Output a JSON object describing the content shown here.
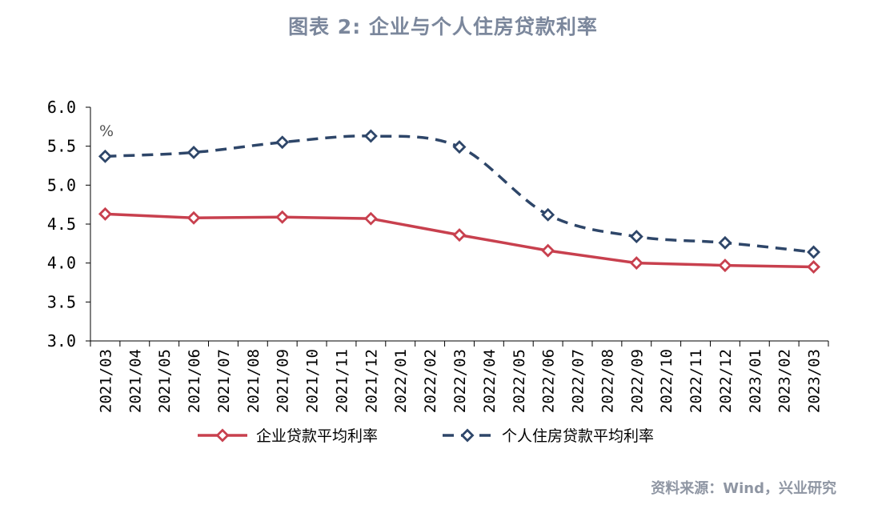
{
  "title": "图表 2:  企业与个人住房贷款利率",
  "source": "资料来源：Wind，兴业研究",
  "chart_data": {
    "type": "line",
    "unit_label": "%",
    "categories": [
      "2021/03",
      "2021/04",
      "2021/05",
      "2021/06",
      "2021/07",
      "2021/08",
      "2021/09",
      "2021/10",
      "2021/11",
      "2021/12",
      "2022/01",
      "2022/02",
      "2022/03",
      "2022/04",
      "2022/05",
      "2022/06",
      "2022/07",
      "2022/08",
      "2022/09",
      "2022/10",
      "2022/11",
      "2022/12",
      "2023/01",
      "2023/02",
      "2023/03"
    ],
    "ylim": [
      3.0,
      6.0
    ],
    "yticks": [
      "3.0",
      "3.5",
      "4.0",
      "4.5",
      "5.0",
      "5.5",
      "6.0"
    ],
    "grid": false,
    "legend_position": "bottom",
    "series": [
      {
        "name": "企业贷款平均利率",
        "color": "#c8404e",
        "dash": false,
        "marker": "diamond",
        "points": [
          {
            "x": "2021/03",
            "y": 4.63
          },
          {
            "x": "2021/06",
            "y": 4.58
          },
          {
            "x": "2021/09",
            "y": 4.59
          },
          {
            "x": "2021/12",
            "y": 4.57
          },
          {
            "x": "2022/03",
            "y": 4.36
          },
          {
            "x": "2022/06",
            "y": 4.16
          },
          {
            "x": "2022/09",
            "y": 4.0
          },
          {
            "x": "2022/12",
            "y": 3.97
          },
          {
            "x": "2023/03",
            "y": 3.95
          }
        ]
      },
      {
        "name": "个人住房贷款平均利率",
        "color": "#2e4669",
        "dash": true,
        "marker": "diamond",
        "points": [
          {
            "x": "2021/03",
            "y": 5.37
          },
          {
            "x": "2021/06",
            "y": 5.42
          },
          {
            "x": "2021/09",
            "y": 5.55
          },
          {
            "x": "2021/12",
            "y": 5.63
          },
          {
            "x": "2022/03",
            "y": 5.49
          },
          {
            "x": "2022/06",
            "y": 4.62
          },
          {
            "x": "2022/09",
            "y": 4.34
          },
          {
            "x": "2022/12",
            "y": 4.26
          },
          {
            "x": "2023/03",
            "y": 4.14
          }
        ]
      }
    ]
  }
}
